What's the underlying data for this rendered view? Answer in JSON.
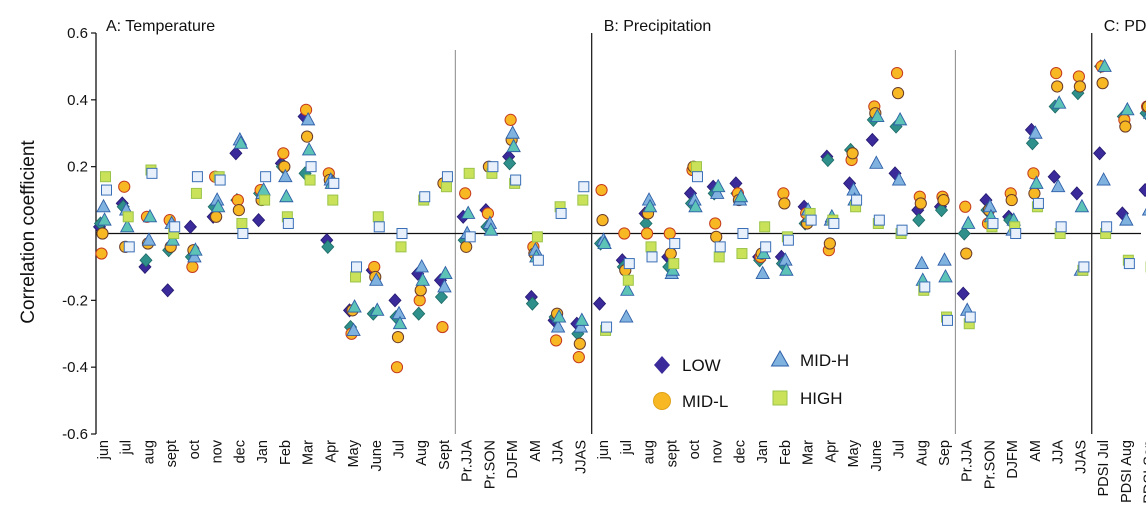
{
  "chart_data": {
    "type": "scatter",
    "ylabel": "Correlation coefficient",
    "ylim": [
      -0.6,
      0.6
    ],
    "y_ticks": [
      "0.6",
      "0.4",
      "0.2",
      "-0.2",
      "-0.4",
      "-0.6"
    ],
    "y_tick_values": [
      0.6,
      0.4,
      0.2,
      -0.2,
      -0.4,
      -0.6
    ],
    "grid": false,
    "legend_position": "lower-center",
    "categories": [
      "jun",
      "jul",
      "aug",
      "sept",
      "oct",
      "nov",
      "dec",
      "Jan",
      "Feb",
      "Mar",
      "Apr",
      "May",
      "June",
      "Jul",
      "Aug",
      "Sept",
      "Pr.JJA",
      "Pr.SON",
      "DJFM",
      "AM",
      "JJA",
      "JJAS",
      "jun",
      "jul",
      "aug",
      "sept",
      "oct",
      "nov",
      "dec",
      "Jan",
      "Feb",
      "Mar",
      "Apr",
      "May",
      "June",
      "Jul",
      "Aug",
      "Sep",
      "Pr.JJA",
      "Pr.SON",
      "DJFM",
      "AM",
      "JJA",
      "JJAS",
      "PDSI Jul",
      "PDSI Aug",
      "PDSI Sep"
    ],
    "panels": [
      {
        "label": "A: Temperature",
        "start": 0,
        "end": 21
      },
      {
        "label": "B: Precipitation",
        "start": 22,
        "end": 43
      },
      {
        "label": "C: PDSI",
        "start": 44,
        "end": 46
      }
    ],
    "legend": [
      {
        "name": "LOW",
        "marker": "diamond"
      },
      {
        "name": "MID-L",
        "marker": "circle"
      },
      {
        "name": "MID-H",
        "marker": "triangle"
      },
      {
        "name": "HIGH",
        "marker": "square"
      }
    ],
    "series": [
      {
        "name": "LOW",
        "marker": "diamond",
        "points": [
          [
            0.02,
            0.03
          ],
          [
            0.09,
            0.08
          ],
          [
            -0.1,
            -0.08
          ],
          [
            -0.17,
            -0.05
          ],
          [
            0.02,
            -0.07
          ],
          [
            0.05,
            0.08
          ],
          [
            0.24,
            0.1
          ],
          [
            0.04,
            0.12
          ],
          [
            0.21,
            0.2
          ],
          [
            0.35,
            0.18
          ],
          [
            -0.02,
            -0.04
          ],
          [
            -0.23,
            -0.28
          ],
          [
            -0.11,
            -0.24
          ],
          [
            -0.2,
            -0.25
          ],
          [
            -0.12,
            -0.24
          ],
          [
            -0.14,
            -0.19
          ],
          [
            0.05,
            -0.02
          ],
          [
            0.07,
            0.02
          ],
          [
            0.23,
            0.21
          ],
          [
            -0.19,
            -0.21
          ],
          [
            -0.26,
            -0.25
          ],
          [
            -0.27,
            -0.3
          ],
          [
            -0.21,
            -0.03
          ],
          [
            -0.08,
            -0.1
          ],
          [
            0.06,
            0.03
          ],
          [
            -0.07,
            -0.1
          ],
          [
            0.12,
            0.09
          ],
          [
            0.14,
            0.12
          ],
          [
            0.15,
            0.12
          ],
          [
            -0.07,
            -0.08
          ],
          [
            -0.07,
            -0.09
          ],
          [
            0.08,
            0.03
          ],
          [
            0.23,
            0.22
          ],
          [
            0.15,
            0.25
          ],
          [
            0.28,
            0.34
          ],
          [
            0.18,
            0.32
          ],
          [
            0.07,
            0.04
          ],
          [
            0.08,
            0.07
          ],
          [
            -0.18,
            0.0
          ],
          [
            0.1,
            0.07
          ],
          [
            0.05,
            0.04
          ],
          [
            0.31,
            0.27
          ],
          [
            0.17,
            0.38
          ],
          [
            0.12,
            0.42
          ],
          [
            0.24,
            0.5
          ],
          [
            0.06,
            0.35
          ],
          [
            0.13,
            0.36
          ]
        ]
      },
      {
        "name": "MID-L",
        "marker": "circle",
        "points": [
          [
            -0.06,
            0.0
          ],
          [
            0.14,
            -0.04
          ],
          [
            0.05,
            -0.03
          ],
          [
            0.04,
            -0.04
          ],
          [
            -0.1,
            -0.05
          ],
          [
            0.17,
            0.05
          ],
          [
            0.1,
            0.07
          ],
          [
            0.13,
            0.1
          ],
          [
            0.24,
            0.2
          ],
          [
            0.37,
            0.29
          ],
          [
            0.18,
            0.16
          ],
          [
            -0.3,
            -0.23
          ],
          [
            -0.1,
            -0.13
          ],
          [
            -0.4,
            -0.31
          ],
          [
            -0.2,
            -0.17
          ],
          [
            -0.28,
            0.15
          ],
          [
            0.12,
            -0.04
          ],
          [
            0.06,
            0.2
          ],
          [
            0.34,
            0.28
          ],
          [
            -0.04,
            -0.06
          ],
          [
            -0.32,
            -0.24
          ],
          [
            -0.37,
            -0.33
          ],
          [
            0.13,
            0.04
          ],
          [
            0.0,
            -0.11
          ],
          [
            0.0,
            0.06
          ],
          [
            0.0,
            -0.06
          ],
          [
            0.19,
            0.2
          ],
          [
            0.03,
            -0.01
          ],
          [
            0.12,
            0.1
          ],
          [
            -0.07,
            -0.06
          ],
          [
            0.12,
            0.09
          ],
          [
            0.06,
            0.03
          ],
          [
            -0.05,
            -0.03
          ],
          [
            0.22,
            0.24
          ],
          [
            0.38,
            0.36
          ],
          [
            0.48,
            0.42
          ],
          [
            0.11,
            0.09
          ],
          [
            0.11,
            0.1
          ],
          [
            0.08,
            -0.06
          ],
          [
            0.03,
            0.07
          ],
          [
            0.12,
            0.1
          ],
          [
            0.18,
            0.12
          ],
          [
            0.48,
            0.44
          ],
          [
            0.47,
            0.44
          ],
          [
            0.5,
            0.45
          ],
          [
            0.34,
            0.32
          ],
          [
            0.38,
            0.38
          ]
        ]
      },
      {
        "name": "MID-H",
        "marker": "triangle",
        "points": [
          [
            0.08,
            0.04
          ],
          [
            0.07,
            0.02
          ],
          [
            -0.02,
            0.05
          ],
          [
            0.03,
            -0.02
          ],
          [
            -0.07,
            -0.05
          ],
          [
            0.1,
            0.08
          ],
          [
            0.28,
            0.27
          ],
          [
            0.12,
            0.13
          ],
          [
            0.17,
            0.11
          ],
          [
            0.34,
            0.25
          ],
          [
            0.16,
            0.15
          ],
          [
            -0.29,
            -0.22
          ],
          [
            -0.14,
            -0.23
          ],
          [
            -0.24,
            -0.27
          ],
          [
            -0.1,
            -0.14
          ],
          [
            -0.16,
            -0.12
          ],
          [
            0.0,
            0.06
          ],
          [
            0.03,
            0.01
          ],
          [
            0.3,
            0.26
          ],
          [
            -0.05,
            -0.07
          ],
          [
            -0.28,
            -0.25
          ],
          [
            -0.28,
            -0.26
          ],
          [
            -0.02,
            -0.03
          ],
          [
            -0.25,
            -0.17
          ],
          [
            0.1,
            0.08
          ],
          [
            -0.12,
            -0.11
          ],
          [
            0.1,
            0.08
          ],
          [
            0.12,
            0.14
          ],
          [
            0.1,
            0.11
          ],
          [
            -0.12,
            -0.06
          ],
          [
            -0.08,
            -0.11
          ],
          [
            0.07,
            0.05
          ],
          [
            0.04,
            0.05
          ],
          [
            0.13,
            0.1
          ],
          [
            0.21,
            0.35
          ],
          [
            0.16,
            0.34
          ],
          [
            -0.09,
            -0.14
          ],
          [
            -0.08,
            -0.13
          ],
          [
            -0.23,
            0.03
          ],
          [
            0.08,
            0.05
          ],
          [
            0.01,
            0.04
          ],
          [
            0.3,
            0.15
          ],
          [
            0.14,
            0.39
          ],
          [
            -0.11,
            0.08
          ],
          [
            0.16,
            0.5
          ],
          [
            0.04,
            0.37
          ],
          [
            0.07,
            0.36
          ]
        ]
      },
      {
        "name": "HIGH",
        "marker": "square",
        "points": [
          [
            0.17,
            0.13
          ],
          [
            0.05,
            -0.04
          ],
          [
            0.19,
            0.18
          ],
          [
            0.0,
            0.02
          ],
          [
            0.12,
            0.17
          ],
          [
            0.17,
            0.16
          ],
          [
            0.03,
            0.0
          ],
          [
            0.1,
            0.17
          ],
          [
            0.05,
            0.03
          ],
          [
            0.16,
            0.2
          ],
          [
            0.1,
            0.15
          ],
          [
            -0.13,
            -0.1
          ],
          [
            0.05,
            0.02
          ],
          [
            -0.04,
            0.0
          ],
          [
            0.1,
            0.11
          ],
          [
            0.14,
            0.17
          ],
          [
            0.18,
            -0.01
          ],
          [
            0.18,
            0.2
          ],
          [
            0.15,
            0.16
          ],
          [
            -0.01,
            -0.08
          ],
          [
            0.08,
            0.06
          ],
          [
            0.1,
            0.14
          ],
          [
            -0.29,
            -0.28
          ],
          [
            -0.14,
            -0.09
          ],
          [
            -0.04,
            -0.07
          ],
          [
            -0.09,
            -0.03
          ],
          [
            0.2,
            0.17
          ],
          [
            -0.07,
            -0.04
          ],
          [
            -0.06,
            0.0
          ],
          [
            0.02,
            -0.04
          ],
          [
            -0.01,
            -0.02
          ],
          [
            0.06,
            0.04
          ],
          [
            0.04,
            0.03
          ],
          [
            0.08,
            0.1
          ],
          [
            0.03,
            0.04
          ],
          [
            0.0,
            0.01
          ],
          [
            -0.17,
            -0.16
          ],
          [
            -0.25,
            -0.26
          ],
          [
            -0.27,
            -0.25
          ],
          [
            0.02,
            0.03
          ],
          [
            0.02,
            0.0
          ],
          [
            0.08,
            0.09
          ],
          [
            0.0,
            0.02
          ],
          [
            -0.11,
            -0.1
          ],
          [
            0.0,
            0.02
          ],
          [
            -0.08,
            -0.09
          ],
          [
            -0.1,
            -0.09
          ]
        ]
      }
    ]
  },
  "colors": {
    "LOW": "#3b2a9a",
    "MID-L_fill": "#f7b824",
    "MID-L_edge": "#c53a1e",
    "MID-H_fill": "#7fb2de",
    "MID-H_edge": "#2f5fa8",
    "HIGH_fill": "#c9e25a",
    "HIGH_edge": "#3a6fb7",
    "HIGH_alt": "#3aa89a",
    "axis": "#111111",
    "divider": "#888888"
  }
}
